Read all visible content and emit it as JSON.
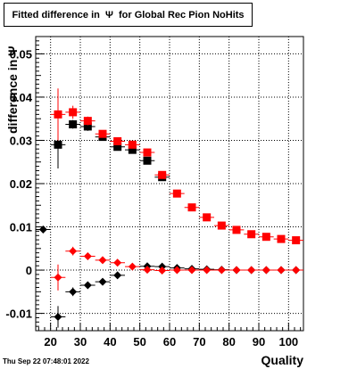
{
  "title": "Fitted difference in  Ψ  for Global Rec Pion NoHits",
  "timestamp": "Thu Sep 22 07:48:01 2022",
  "chart_data": {
    "type": "scatter",
    "title": "Fitted difference in  Ψ  for Global Rec Pion NoHits",
    "xlabel": "Quality",
    "ylabel": "difference in Ψ",
    "xlim": [
      15,
      105
    ],
    "ylim": [
      -0.014,
      0.054
    ],
    "x_ticks": [
      20,
      30,
      40,
      50,
      60,
      70,
      80,
      90,
      100
    ],
    "x_tick_labels": [
      "20",
      "30",
      "40",
      "50",
      "60",
      "70",
      "80",
      "90",
      "100"
    ],
    "y_ticks": [
      -0.01,
      0,
      0.01,
      0.02,
      0.03,
      0.04,
      0.05
    ],
    "y_tick_labels": [
      "-0.01",
      "0",
      "0.01",
      "0.02",
      "0.03",
      "0.04",
      "0.05"
    ],
    "grid": true,
    "series": [
      {
        "marker": "square",
        "color": "#000000",
        "x": [
          22.5,
          27.5,
          32.5,
          37.5,
          42.5,
          47.5,
          52.5,
          57.5
        ],
        "y": [
          0.029,
          0.0337,
          0.0332,
          0.0308,
          0.0285,
          0.0278,
          0.0253,
          0.0215
        ],
        "yerr": [
          0.0055,
          0.001,
          0.001,
          0.0008,
          0.0008,
          0.0008,
          0.0008,
          0.0008
        ]
      },
      {
        "marker": "square",
        "color": "#ff0000",
        "x": [
          22.5,
          27.5,
          32.5,
          37.5,
          42.5,
          47.5,
          52.5,
          57.5,
          62.5,
          67.5,
          72.5,
          77.5,
          82.5,
          87.5,
          92.5,
          97.5,
          102.5
        ],
        "y": [
          0.036,
          0.0365,
          0.0345,
          0.0315,
          0.0298,
          0.029,
          0.0272,
          0.022,
          0.0177,
          0.0145,
          0.0122,
          0.0103,
          0.0093,
          0.0083,
          0.0077,
          0.0072,
          0.0069
        ],
        "yerr": [
          0.006,
          0.0015,
          0.001,
          0.0008,
          0.0008,
          0.0008,
          0.0008,
          0.0008,
          0.0005,
          0.0005,
          0.0005,
          0.0005,
          0.0005,
          0.0005,
          0.0005,
          0.0005,
          0.0005
        ]
      },
      {
        "marker": "diamond",
        "color": "#000000",
        "x": [
          17.5,
          22.5,
          27.5,
          32.5,
          37.5,
          42.5,
          52.5,
          57.5,
          62.5,
          67.5,
          72.5,
          77.5,
          82.5,
          87.5,
          92.5,
          97.5,
          102.5
        ],
        "y": [
          0.0094,
          -0.0108,
          -0.005,
          -0.0035,
          -0.0027,
          -0.0012,
          0.0009,
          0.0008,
          0.0005,
          0.0003,
          0.0002,
          0.0001,
          0.0,
          0.0,
          0.0,
          0.0,
          0.0
        ],
        "yerr": [
          0.0,
          0.0025,
          0.001,
          0.0008,
          0.0006,
          0.0005,
          0.0004,
          0.0004,
          0.0003,
          0.0003,
          0.0003,
          0.0003,
          0.0002,
          0.0002,
          0.0002,
          0.0002,
          0.0002
        ]
      },
      {
        "marker": "diamond",
        "color": "#ff0000",
        "x": [
          22.5,
          27.5,
          32.5,
          37.5,
          42.5,
          47.5,
          52.5,
          57.5,
          62.5,
          67.5,
          72.5,
          77.5,
          82.5,
          87.5,
          92.5,
          97.5,
          102.5
        ],
        "y": [
          -0.0017,
          0.0044,
          0.0032,
          0.0023,
          0.0017,
          0.0008,
          0.0001,
          -0.0001,
          0.0,
          0.0,
          0.0,
          0.0,
          0.0,
          0.0,
          0.0,
          0.0,
          0.0
        ],
        "yerr": [
          0.003,
          0.001,
          0.0008,
          0.0006,
          0.0005,
          0.0004,
          0.0003,
          0.0003,
          0.0002,
          0.0002,
          0.0002,
          0.0002,
          0.0002,
          0.0002,
          0.0002,
          0.0002,
          0.0002
        ]
      }
    ]
  }
}
